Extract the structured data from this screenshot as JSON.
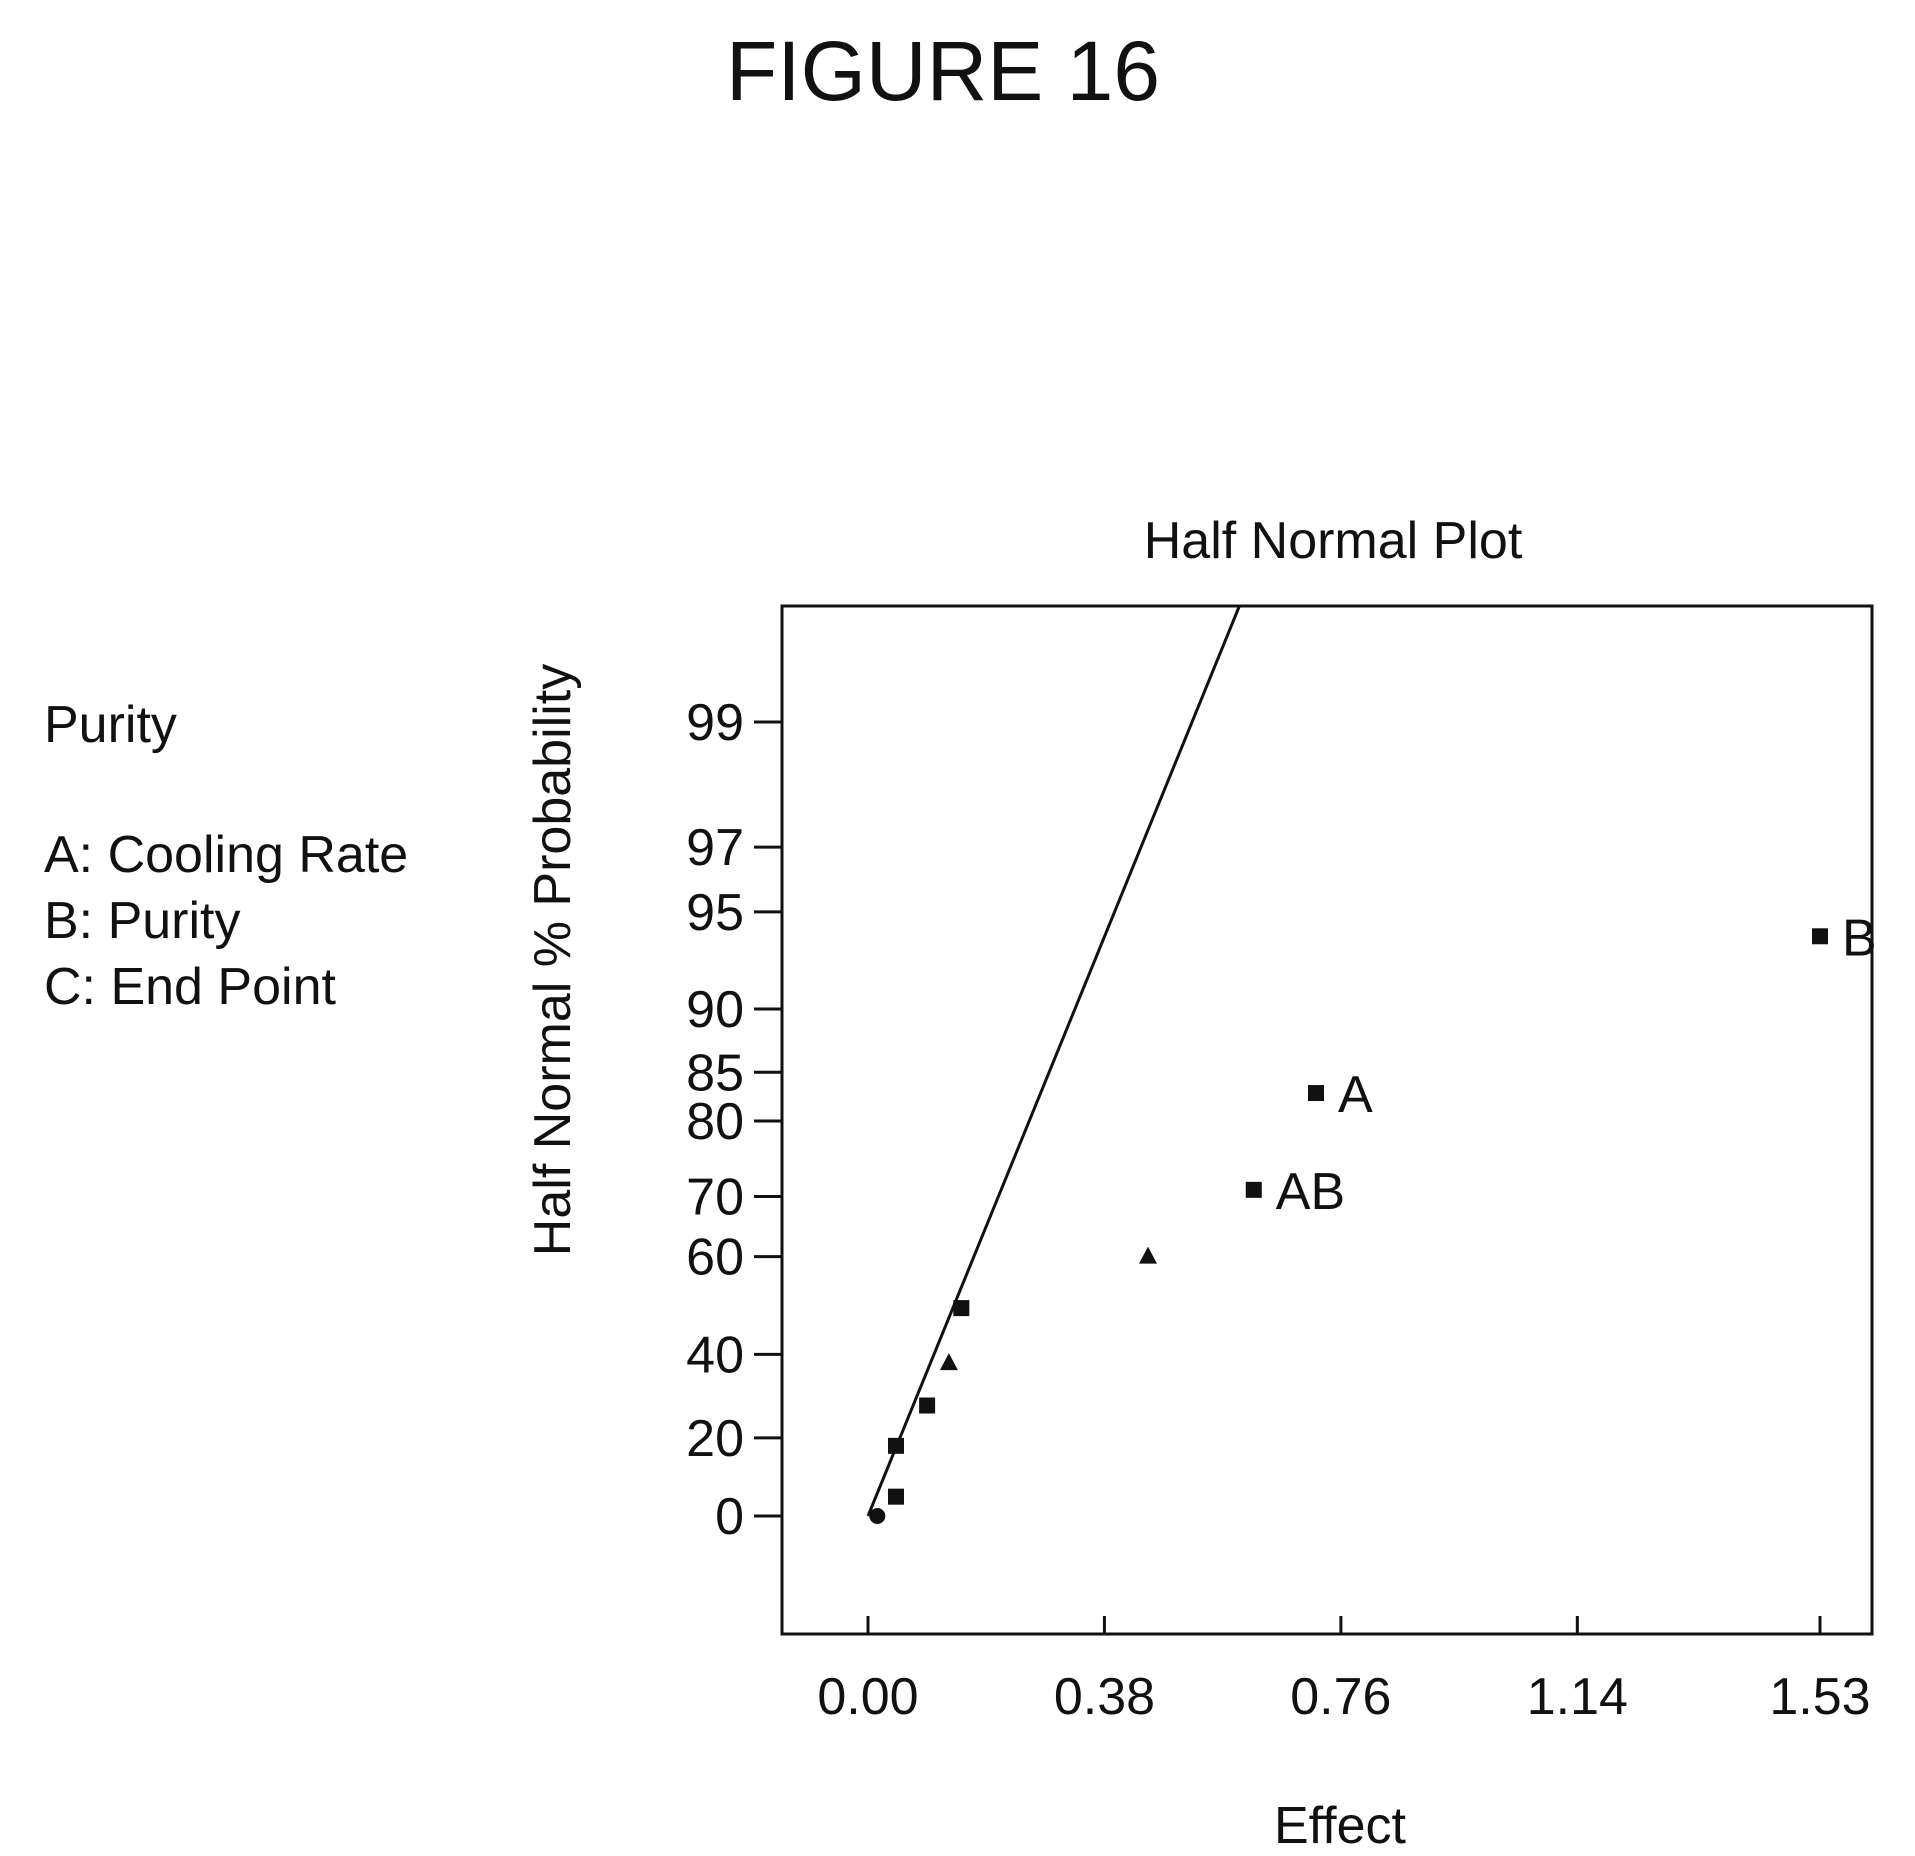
{
  "figure_title": "FIGURE 16",
  "legend": {
    "heading": "Purity",
    "lines": [
      "A: Cooling Rate",
      "B: Purity",
      "C: End Point"
    ]
  },
  "chart_data": {
    "type": "scatter",
    "title": "Half Normal Plot",
    "xlabel": "Effect",
    "ylabel": "Half Normal % Probability",
    "x_ticks": [
      "0.00",
      "0.38",
      "0.76",
      "1.14",
      "1.53"
    ],
    "y_ticks": [
      "0",
      "20",
      "40",
      "60",
      "70",
      "80",
      "85",
      "90",
      "95",
      "97",
      "99"
    ],
    "xlim": [
      -0.13,
      1.63
    ],
    "y_scale": "half-normal probability",
    "grid": false,
    "colors": {
      "ink": "#111111",
      "background": "#ffffff"
    },
    "points": [
      {
        "x": 0.015,
        "y": 0,
        "marker": "circle",
        "label": ""
      },
      {
        "x": 0.045,
        "y": 5,
        "marker": "square",
        "label": ""
      },
      {
        "x": 0.045,
        "y": 18,
        "marker": "square",
        "label": ""
      },
      {
        "x": 0.095,
        "y": 28,
        "marker": "square",
        "label": ""
      },
      {
        "x": 0.13,
        "y": 38,
        "marker": "triangle",
        "label": ""
      },
      {
        "x": 0.15,
        "y": 50,
        "marker": "square",
        "label": ""
      },
      {
        "x": 0.45,
        "y": 60,
        "marker": "triangle",
        "label": ""
      },
      {
        "x": 0.62,
        "y": 71,
        "marker": "square",
        "label": "AB"
      },
      {
        "x": 0.72,
        "y": 83,
        "marker": "square",
        "label": "A"
      },
      {
        "x": 1.53,
        "y": 94,
        "marker": "square",
        "label": "B"
      }
    ],
    "fit_line": {
      "from": {
        "x": 0.0,
        "y": 0
      },
      "to": {
        "x": 0.6,
        "y": 99.7
      }
    }
  }
}
